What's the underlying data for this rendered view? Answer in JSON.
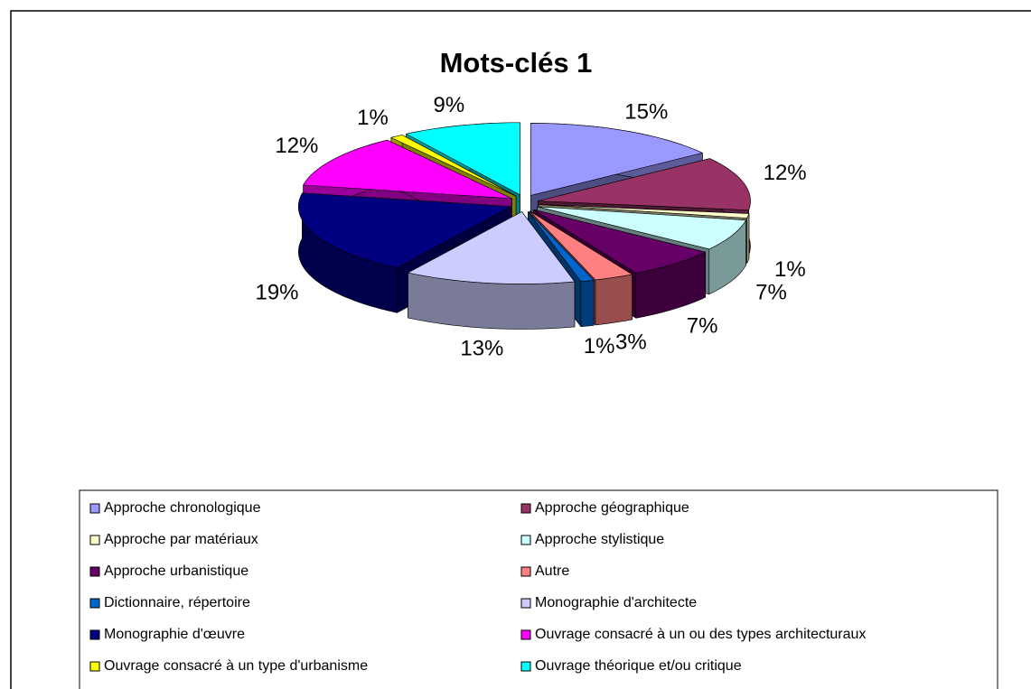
{
  "chart_data": {
    "type": "pie",
    "title": "Mots-clés 1",
    "categories": [
      "Approche chronologique",
      "Approche géographique",
      "Approche par matériaux",
      "Approche stylistique",
      "Approche urbanistique",
      "Autre",
      "Dictionnaire, répertoire",
      "Monographie d'architecte",
      "Monographie d'œuvre",
      "Ouvrage consacré à un ou des types architecturaux",
      "Ouvrage consacré à un type d'urbanisme",
      "Ouvrage théorique et/ou critique"
    ],
    "values": [
      15,
      12,
      1,
      7,
      7,
      3,
      1,
      13,
      19,
      12,
      1,
      9
    ],
    "value_labels": [
      "15%",
      "12%",
      "1%",
      "7%",
      "7%",
      "3%",
      "1%",
      "13%",
      "19%",
      "12%",
      "1%",
      "9%"
    ],
    "colors": [
      "#9999ff",
      "#993366",
      "#ffffcc",
      "#ccffff",
      "#660066",
      "#ff8080",
      "#0066cc",
      "#ccccff",
      "#000080",
      "#ff00ff",
      "#ffff00",
      "#00ffff"
    ],
    "legend": "bottom"
  }
}
